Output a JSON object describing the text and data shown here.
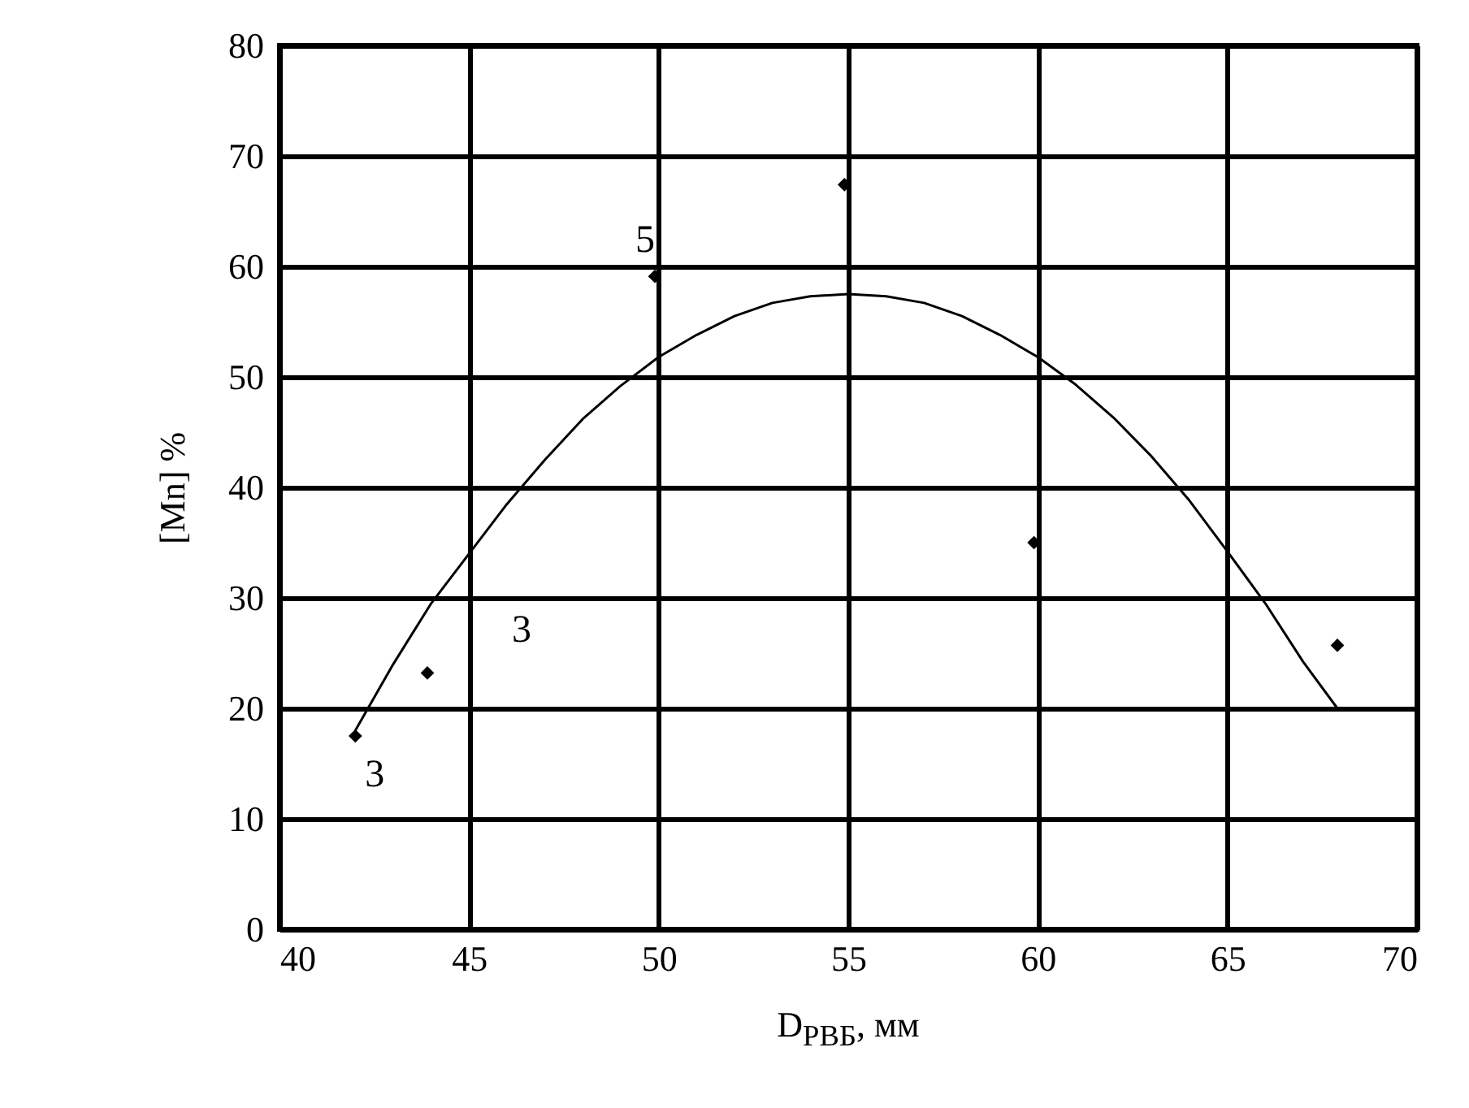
{
  "chart_data": {
    "type": "scatter",
    "xlabel": "D$_{РВБ}$, мм",
    "ylabel": "[Mn] %",
    "xlim": [
      40,
      70
    ],
    "xticks": [
      40,
      45,
      50,
      55,
      60,
      65,
      70
    ],
    "ylim": [
      0,
      80
    ],
    "yticks": [
      0,
      10,
      20,
      30,
      40,
      50,
      60,
      70,
      80
    ],
    "grid": true,
    "series": [
      {
        "type": "scatter",
        "color": "#000000",
        "marker": "diamond",
        "x": [
          42.0,
          43.9,
          49.9,
          54.9,
          59.9,
          67.9
        ],
        "values": [
          17.5,
          23.2,
          59.1,
          67.4,
          35.0,
          25.7
        ]
      },
      {
        "type": "line",
        "color": "#000000",
        "x": [
          42,
          43,
          44,
          45,
          46,
          47,
          48,
          49,
          50,
          51,
          52,
          53,
          54,
          55,
          56,
          57,
          58,
          59,
          60,
          61,
          62,
          63,
          64,
          65,
          66,
          67,
          67.9
        ],
        "values": [
          18,
          24,
          29.5,
          34,
          38.5,
          42.5,
          46.2,
          49.2,
          51.8,
          53.8,
          55.5,
          56.7,
          57.3,
          57.5,
          57.3,
          56.7,
          55.5,
          53.8,
          51.8,
          49.3,
          46.3,
          42.8,
          38.8,
          34.2,
          29.5,
          24.2,
          20
        ]
      }
    ],
    "annotations": [
      {
        "text": "5",
        "x": 49.9,
        "y": 59.1
      },
      {
        "text": "3",
        "x": 43.9,
        "y": 23.2
      },
      {
        "text": "3",
        "x": 42.0,
        "y": 17.5
      }
    ]
  }
}
